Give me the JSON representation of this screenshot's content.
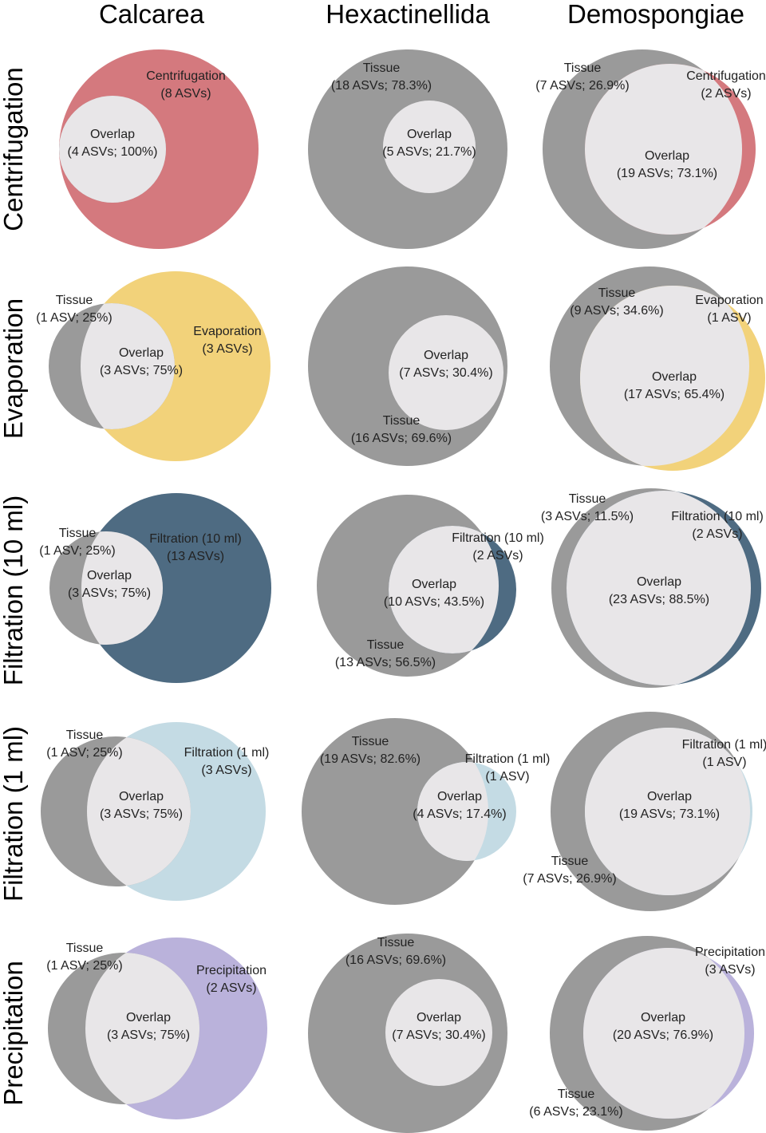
{
  "columns": [
    "Calcarea",
    "Hexactinellida",
    "Demospongiae"
  ],
  "rows": [
    "Centrifugation",
    "Evaporation",
    "Filtration (10 ml)",
    "Filtration (1 ml)",
    "Precipitation"
  ],
  "colors": {
    "tissue": "#9a9a9a",
    "overlap": "#e8e6e8",
    "Centrifugation": "#d4797e",
    "Evaporation": "#f2d27a",
    "Filtration (10 ml)": "#4e6b82",
    "Filtration (1 ml)": "#c4dbe4",
    "Precipitation": "#bab2db"
  },
  "diagrams": {
    "Calcarea": {
      "Centrifugation": {
        "method": {
          "line1": "Centrifugation",
          "line2": "(8 ASVs)"
        },
        "overlap": {
          "line1": "Overlap",
          "line2": "(4 ASVs; 100%)"
        }
      },
      "Evaporation": {
        "tissue": {
          "line1": "Tissue",
          "line2": "(1 ASV; 25%)"
        },
        "method": {
          "line1": "Evaporation",
          "line2": "(3 ASVs)"
        },
        "overlap": {
          "line1": "Overlap",
          "line2": "(3 ASVs; 75%)"
        }
      },
      "Filtration (10 ml)": {
        "tissue": {
          "line1": "Tissue",
          "line2": "(1 ASV; 25%)"
        },
        "method": {
          "line1": "Filtration (10 ml)",
          "line2": "(13 ASVs)"
        },
        "overlap": {
          "line1": "Overlap",
          "line2": "(3 ASVs; 75%)"
        }
      },
      "Filtration (1 ml)": {
        "tissue": {
          "line1": "Tissue",
          "line2": "(1 ASV; 25%)"
        },
        "method": {
          "line1": "Filtration (1 ml)",
          "line2": "(3 ASVs)"
        },
        "overlap": {
          "line1": "Overlap",
          "line2": "(3 ASVs; 75%)"
        }
      },
      "Precipitation": {
        "tissue": {
          "line1": "Tissue",
          "line2": "(1 ASV; 25%)"
        },
        "method": {
          "line1": "Precipitation",
          "line2": "(2 ASVs)"
        },
        "overlap": {
          "line1": "Overlap",
          "line2": "(3 ASVs; 75%)"
        }
      }
    },
    "Hexactinellida": {
      "Centrifugation": {
        "tissue": {
          "line1": "Tissue",
          "line2": "(18 ASVs; 78.3%)"
        },
        "overlap": {
          "line1": "Overlap",
          "line2": "(5 ASVs; 21.7%)"
        }
      },
      "Evaporation": {
        "tissue": {
          "line1": "Tissue",
          "line2": "(16 ASVs; 69.6%)"
        },
        "overlap": {
          "line1": "Overlap",
          "line2": "(7 ASVs; 30.4%)"
        }
      },
      "Filtration (10 ml)": {
        "tissue": {
          "line1": "Tissue",
          "line2": "(13 ASVs; 56.5%)"
        },
        "method": {
          "line1": "Filtration (10 ml)",
          "line2": "(2 ASVs)"
        },
        "overlap": {
          "line1": "Overlap",
          "line2": "(10 ASVs; 43.5%)"
        }
      },
      "Filtration (1 ml)": {
        "tissue": {
          "line1": "Tissue",
          "line2": "(19 ASVs; 82.6%)"
        },
        "method": {
          "line1": "Filtration (1 ml)",
          "line2": "(1 ASV)"
        },
        "overlap": {
          "line1": "Overlap",
          "line2": "(4 ASVs; 17.4%)"
        }
      },
      "Precipitation": {
        "tissue": {
          "line1": "Tissue",
          "line2": "(16 ASVs; 69.6%)"
        },
        "overlap": {
          "line1": "Overlap",
          "line2": "(7 ASVs; 30.4%)"
        }
      }
    },
    "Demospongiae": {
      "Centrifugation": {
        "tissue": {
          "line1": "Tissue",
          "line2": "(7 ASVs; 26.9%)"
        },
        "method": {
          "line1": "Centrifugation",
          "line2": "(2 ASVs)"
        },
        "overlap": {
          "line1": "Overlap",
          "line2": "(19 ASVs; 73.1%)"
        }
      },
      "Evaporation": {
        "tissue": {
          "line1": "Tissue",
          "line2": "(9 ASVs; 34.6%)"
        },
        "method": {
          "line1": "Evaporation",
          "line2": "(1 ASV)"
        },
        "overlap": {
          "line1": "Overlap",
          "line2": "(17 ASVs; 65.4%)"
        }
      },
      "Filtration (10 ml)": {
        "tissue": {
          "line1": "Tissue",
          "line2": "(3 ASVs; 11.5%)"
        },
        "method": {
          "line1": "Filtration (10 ml)",
          "line2": "(2 ASVs)"
        },
        "overlap": {
          "line1": "Overlap",
          "line2": "(23 ASVs; 88.5%)"
        }
      },
      "Filtration (1 ml)": {
        "tissue": {
          "line1": "Tissue",
          "line2": "(7 ASVs; 26.9%)"
        },
        "method": {
          "line1": "Filtration (1 ml)",
          "line2": "(1 ASV)"
        },
        "overlap": {
          "line1": "Overlap",
          "line2": "(19 ASVs; 73.1%)"
        }
      },
      "Precipitation": {
        "tissue": {
          "line1": "Tissue",
          "line2": "(6 ASVs; 23.1%)"
        },
        "method": {
          "line1": "Precipitation",
          "line2": "(3 ASVs)"
        },
        "overlap": {
          "line1": "Overlap",
          "line2": "(20 ASVs; 76.9%)"
        }
      }
    }
  }
}
